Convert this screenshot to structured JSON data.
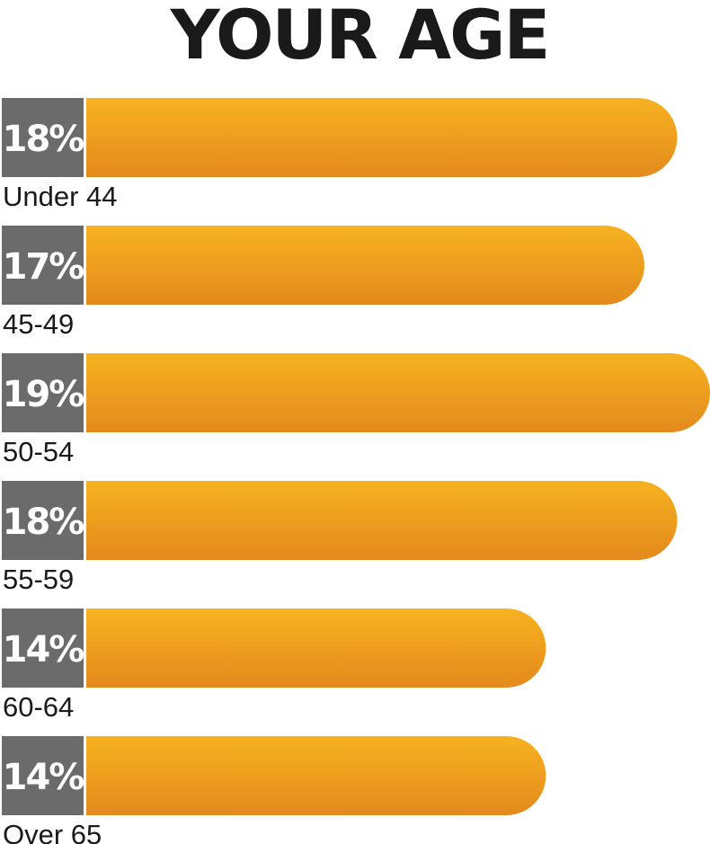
{
  "chart_data": {
    "type": "bar",
    "orientation": "horizontal",
    "title": "YOUR AGE",
    "categories": [
      "Under 44",
      "45-49",
      "50-54",
      "55-59",
      "60-64",
      "Over 65"
    ],
    "values": [
      18,
      17,
      19,
      18,
      14,
      14
    ],
    "value_labels": [
      "18%",
      "17%",
      "19%",
      "18%",
      "14%",
      "14%"
    ],
    "unit": "%",
    "xlim": [
      0,
      19
    ],
    "grid": false,
    "legend": "none",
    "colors": {
      "bar_top": "#f7b21f",
      "bar_bottom": "#e38a1e",
      "label_box": "#6b6b6b",
      "text": "#1a1a1a"
    }
  }
}
